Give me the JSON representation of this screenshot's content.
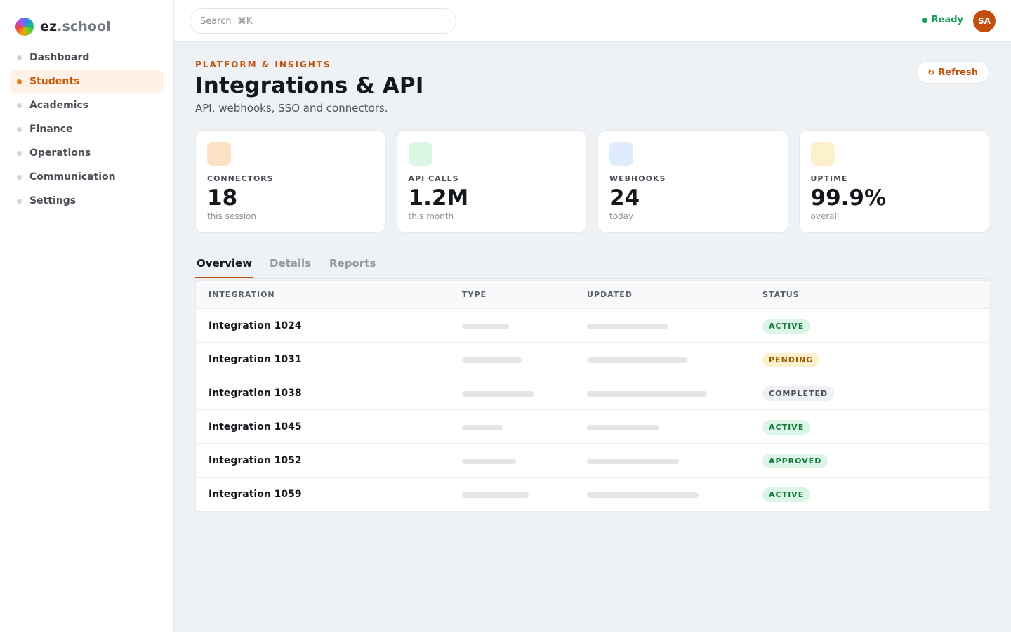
{
  "brand": {
    "name": "ez",
    "dot": ".",
    "suffix": "school"
  },
  "sidebar": {
    "items": [
      {
        "label": "Dashboard",
        "active": false
      },
      {
        "label": "Students",
        "active": true
      },
      {
        "label": "Academics",
        "active": false
      },
      {
        "label": "Finance",
        "active": false
      },
      {
        "label": "Operations",
        "active": false
      },
      {
        "label": "Communication",
        "active": false
      },
      {
        "label": "Settings",
        "active": false
      }
    ]
  },
  "topbar": {
    "search_placeholder": "Search  ⌘K",
    "status": "Ready",
    "status_color": "#16a05a",
    "avatar_initials": "SA"
  },
  "header": {
    "eyebrow": "PLATFORM & INSIGHTS",
    "title": "Integrations & API",
    "subtitle": "API, webhooks, SSO and connectors.",
    "refresh_icon": "↻",
    "refresh_label": "Refresh"
  },
  "stats": [
    {
      "label": "CONNECTORS",
      "value": "18",
      "sub": "this session",
      "icon_color": "#fde1c4"
    },
    {
      "label": "API CALLS",
      "value": "1.2M",
      "sub": "this month",
      "icon_color": "#dcf6e6"
    },
    {
      "label": "WEBHOOKS",
      "value": "24",
      "sub": "today",
      "icon_color": "#e0ecfb"
    },
    {
      "label": "UPTIME",
      "value": "99.9%",
      "sub": "overall",
      "icon_color": "#fdf0cc"
    }
  ],
  "tabs": [
    {
      "label": "Overview",
      "active": true
    },
    {
      "label": "Details",
      "active": false
    },
    {
      "label": "Reports",
      "active": false
    }
  ],
  "table": {
    "headers": [
      "INTEGRATION",
      "TYPE",
      "UPDATED",
      "STATUS"
    ],
    "rows": [
      {
        "name": "Integration 1024",
        "status": "ACTIVE",
        "status_kind": "active"
      },
      {
        "name": "Integration 1031",
        "status": "PENDING",
        "status_kind": "pending"
      },
      {
        "name": "Integration 1038",
        "status": "COMPLETED",
        "status_kind": "completed"
      },
      {
        "name": "Integration 1045",
        "status": "ACTIVE",
        "status_kind": "active"
      },
      {
        "name": "Integration 1052",
        "status": "APPROVED",
        "status_kind": "approved"
      },
      {
        "name": "Integration 1059",
        "status": "ACTIVE",
        "status_kind": "active"
      }
    ]
  },
  "accent_color": "#c2550c"
}
